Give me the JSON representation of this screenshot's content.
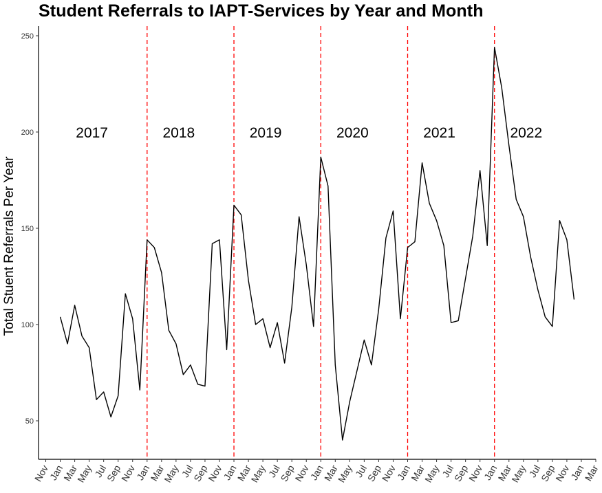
{
  "chart_data": {
    "type": "line",
    "title": "Student Referrals to IAPT-Services by Year and Month",
    "xlabel": "",
    "ylabel": "Total Stuent Referrals Per Year",
    "ylim": [
      30,
      255
    ],
    "yticks": [
      50,
      100,
      150,
      200,
      250
    ],
    "xlim": [
      "2016-10",
      "2023-03"
    ],
    "xticks": [
      {
        "date": "2016-11",
        "label": "Nov"
      },
      {
        "date": "2017-01",
        "label": "Jan"
      },
      {
        "date": "2017-03",
        "label": "Mar"
      },
      {
        "date": "2017-05",
        "label": "May"
      },
      {
        "date": "2017-07",
        "label": "Jul"
      },
      {
        "date": "2017-09",
        "label": "Sep"
      },
      {
        "date": "2017-11",
        "label": "Nov"
      },
      {
        "date": "2018-01",
        "label": "Jan"
      },
      {
        "date": "2018-03",
        "label": "Mar"
      },
      {
        "date": "2018-05",
        "label": "May"
      },
      {
        "date": "2018-07",
        "label": "Jul"
      },
      {
        "date": "2018-09",
        "label": "Sep"
      },
      {
        "date": "2018-11",
        "label": "Nov"
      },
      {
        "date": "2019-01",
        "label": "Jan"
      },
      {
        "date": "2019-03",
        "label": "Mar"
      },
      {
        "date": "2019-05",
        "label": "May"
      },
      {
        "date": "2019-07",
        "label": "Jul"
      },
      {
        "date": "2019-09",
        "label": "Sep"
      },
      {
        "date": "2019-11",
        "label": "Nov"
      },
      {
        "date": "2020-01",
        "label": "Jan"
      },
      {
        "date": "2020-03",
        "label": "Mar"
      },
      {
        "date": "2020-05",
        "label": "May"
      },
      {
        "date": "2020-07",
        "label": "Jul"
      },
      {
        "date": "2020-09",
        "label": "Sep"
      },
      {
        "date": "2020-11",
        "label": "Nov"
      },
      {
        "date": "2021-01",
        "label": "Jan"
      },
      {
        "date": "2021-03",
        "label": "Mar"
      },
      {
        "date": "2021-05",
        "label": "May"
      },
      {
        "date": "2021-07",
        "label": "Jul"
      },
      {
        "date": "2021-09",
        "label": "Sep"
      },
      {
        "date": "2021-11",
        "label": "Nov"
      },
      {
        "date": "2022-01",
        "label": "Jan"
      },
      {
        "date": "2022-03",
        "label": "Mar"
      },
      {
        "date": "2022-05",
        "label": "May"
      },
      {
        "date": "2022-07",
        "label": "Jul"
      },
      {
        "date": "2022-09",
        "label": "Sep"
      },
      {
        "date": "2022-11",
        "label": "Nov"
      },
      {
        "date": "2023-01",
        "label": "Jan"
      },
      {
        "date": "2023-03",
        "label": "Mar"
      }
    ],
    "series": [
      {
        "color": "#000000",
        "points": [
          {
            "x": "2017-01",
            "y": 104
          },
          {
            "x": "2017-02",
            "y": 90
          },
          {
            "x": "2017-03",
            "y": 110
          },
          {
            "x": "2017-04",
            "y": 94
          },
          {
            "x": "2017-05",
            "y": 88
          },
          {
            "x": "2017-06",
            "y": 61
          },
          {
            "x": "2017-07",
            "y": 65
          },
          {
            "x": "2017-08",
            "y": 52
          },
          {
            "x": "2017-09",
            "y": 63
          },
          {
            "x": "2017-10",
            "y": 116
          },
          {
            "x": "2017-11",
            "y": 103
          },
          {
            "x": "2017-12",
            "y": 66
          },
          {
            "x": "2018-01",
            "y": 144
          },
          {
            "x": "2018-02",
            "y": 140
          },
          {
            "x": "2018-03",
            "y": 127
          },
          {
            "x": "2018-04",
            "y": 97
          },
          {
            "x": "2018-05",
            "y": 90
          },
          {
            "x": "2018-06",
            "y": 74
          },
          {
            "x": "2018-07",
            "y": 79
          },
          {
            "x": "2018-08",
            "y": 69
          },
          {
            "x": "2018-09",
            "y": 68
          },
          {
            "x": "2018-10",
            "y": 142
          },
          {
            "x": "2018-11",
            "y": 144
          },
          {
            "x": "2018-12",
            "y": 87
          },
          {
            "x": "2019-01",
            "y": 162
          },
          {
            "x": "2019-02",
            "y": 157
          },
          {
            "x": "2019-03",
            "y": 123
          },
          {
            "x": "2019-04",
            "y": 100
          },
          {
            "x": "2019-05",
            "y": 103
          },
          {
            "x": "2019-06",
            "y": 88
          },
          {
            "x": "2019-07",
            "y": 101
          },
          {
            "x": "2019-08",
            "y": 80
          },
          {
            "x": "2019-09",
            "y": 109
          },
          {
            "x": "2019-10",
            "y": 156
          },
          {
            "x": "2019-11",
            "y": 131
          },
          {
            "x": "2019-12",
            "y": 99
          },
          {
            "x": "2020-01",
            "y": 187
          },
          {
            "x": "2020-02",
            "y": 172
          },
          {
            "x": "2020-03",
            "y": 79
          },
          {
            "x": "2020-04",
            "y": 40
          },
          {
            "x": "2020-05",
            "y": 60
          },
          {
            "x": "2020-06",
            "y": 76
          },
          {
            "x": "2020-07",
            "y": 92
          },
          {
            "x": "2020-08",
            "y": 79
          },
          {
            "x": "2020-09",
            "y": 108
          },
          {
            "x": "2020-10",
            "y": 145
          },
          {
            "x": "2020-11",
            "y": 159
          },
          {
            "x": "2020-12",
            "y": 103
          },
          {
            "x": "2021-01",
            "y": 140
          },
          {
            "x": "2021-02",
            "y": 143
          },
          {
            "x": "2021-03",
            "y": 184
          },
          {
            "x": "2021-04",
            "y": 163
          },
          {
            "x": "2021-05",
            "y": 154
          },
          {
            "x": "2021-06",
            "y": 141
          },
          {
            "x": "2021-07",
            "y": 101
          },
          {
            "x": "2021-08",
            "y": 102
          },
          {
            "x": "2021-09",
            "y": 124
          },
          {
            "x": "2021-10",
            "y": 146
          },
          {
            "x": "2021-11",
            "y": 180
          },
          {
            "x": "2021-12",
            "y": 141
          },
          {
            "x": "2022-01",
            "y": 244
          },
          {
            "x": "2022-02",
            "y": 223
          },
          {
            "x": "2022-03",
            "y": 193
          },
          {
            "x": "2022-04",
            "y": 165
          },
          {
            "x": "2022-05",
            "y": 156
          },
          {
            "x": "2022-06",
            "y": 135
          },
          {
            "x": "2022-07",
            "y": 118
          },
          {
            "x": "2022-08",
            "y": 104
          },
          {
            "x": "2022-09",
            "y": 99
          },
          {
            "x": "2022-10",
            "y": 154
          },
          {
            "x": "2022-11",
            "y": 144
          },
          {
            "x": "2022-12",
            "y": 113
          }
        ]
      }
    ],
    "vlines": {
      "color": "#ff0000",
      "style": "dashed",
      "dates": [
        "2018-01",
        "2019-01",
        "2020-01",
        "2021-01",
        "2022-01"
      ]
    },
    "annotations": [
      {
        "text": "2017",
        "x": "2017-05",
        "y": 200
      },
      {
        "text": "2018",
        "x": "2018-05",
        "y": 200
      },
      {
        "text": "2019",
        "x": "2019-05",
        "y": 200
      },
      {
        "text": "2020",
        "x": "2020-05",
        "y": 200
      },
      {
        "text": "2021",
        "x": "2021-05",
        "y": 200
      },
      {
        "text": "2022",
        "x": "2022-05",
        "y": 200
      }
    ],
    "grid": false,
    "legend": "none"
  }
}
